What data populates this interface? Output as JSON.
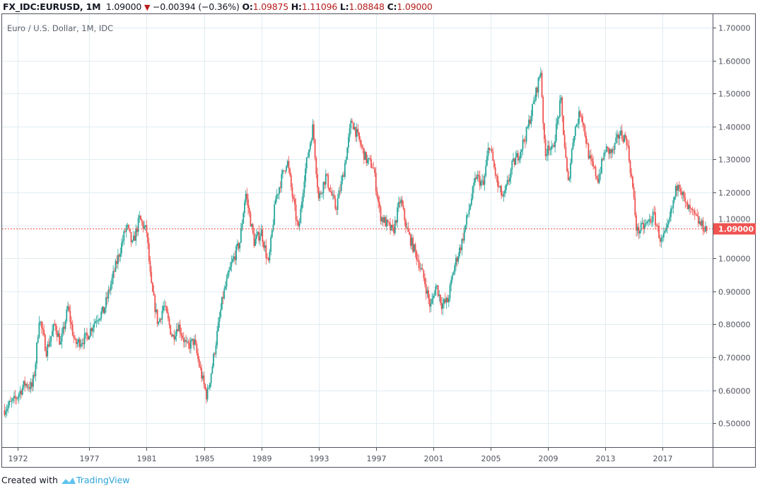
{
  "header": {
    "symbol": "FX_IDC:EURUSD, 1M",
    "last": "1.09000",
    "change": "−0.00394 (−0.36%)",
    "o_label": "O:",
    "o": "1.09875",
    "h_label": "H:",
    "h": "1.11096",
    "l_label": "L:",
    "l": "1.08848",
    "c_label": "C:",
    "c": "1.09000"
  },
  "footer": {
    "created_with": "Created with",
    "brand": "TradingView"
  },
  "colors": {
    "up": "#26a69a",
    "down": "#ef5350",
    "grid": "#e1ecf2",
    "axis": "#50535e"
  },
  "chart_data": {
    "type": "candlestick",
    "title": "Euro / U.S. Dollar, 1M, IDC",
    "interval": "1M",
    "xlabel": "",
    "ylabel": "",
    "ylim": [
      0.43,
      1.74
    ],
    "xlim": [
      1970.9,
      2020.8
    ],
    "grid": true,
    "y_ticks": [
      "1.70000",
      "1.60000",
      "1.50000",
      "1.40000",
      "1.30000",
      "1.20000",
      "1.10000",
      "1.00000",
      "0.90000",
      "0.80000",
      "0.70000",
      "0.60000",
      "0.50000"
    ],
    "x_ticks": [
      "1972",
      "1977",
      "1981",
      "1985",
      "1989",
      "1993",
      "1997",
      "2001",
      "2005",
      "2009",
      "2013",
      "2017"
    ],
    "last_price": 1.09,
    "last_price_label": "1.09000",
    "approx_close_path": [
      [
        1971.0,
        0.54
      ],
      [
        1971.8,
        0.57
      ],
      [
        1972.5,
        0.62
      ],
      [
        1973.0,
        0.61
      ],
      [
        1973.2,
        0.66
      ],
      [
        1973.5,
        0.82
      ],
      [
        1974.0,
        0.72
      ],
      [
        1974.6,
        0.8
      ],
      [
        1975.0,
        0.74
      ],
      [
        1975.5,
        0.85
      ],
      [
        1976.0,
        0.74
      ],
      [
        1976.8,
        0.76
      ],
      [
        1977.5,
        0.82
      ],
      [
        1978.0,
        0.84
      ],
      [
        1978.8,
        0.97
      ],
      [
        1979.3,
        1.05
      ],
      [
        1979.6,
        1.1
      ],
      [
        1980.0,
        1.04
      ],
      [
        1980.5,
        1.12
      ],
      [
        1981.0,
        1.08
      ],
      [
        1981.3,
        0.92
      ],
      [
        1981.8,
        0.8
      ],
      [
        1982.2,
        0.86
      ],
      [
        1982.8,
        0.76
      ],
      [
        1983.2,
        0.8
      ],
      [
        1983.8,
        0.73
      ],
      [
        1984.3,
        0.75
      ],
      [
        1984.8,
        0.65
      ],
      [
        1985.2,
        0.58
      ],
      [
        1985.6,
        0.68
      ],
      [
        1986.3,
        0.88
      ],
      [
        1986.9,
        0.98
      ],
      [
        1987.5,
        1.05
      ],
      [
        1987.9,
        1.2
      ],
      [
        1988.5,
        1.05
      ],
      [
        1989.0,
        1.08
      ],
      [
        1989.5,
        0.98
      ],
      [
        1990.0,
        1.18
      ],
      [
        1990.8,
        1.3
      ],
      [
        1991.2,
        1.18
      ],
      [
        1991.6,
        1.08
      ],
      [
        1992.0,
        1.25
      ],
      [
        1992.6,
        1.4
      ],
      [
        1993.0,
        1.18
      ],
      [
        1993.5,
        1.25
      ],
      [
        1994.2,
        1.15
      ],
      [
        1994.7,
        1.25
      ],
      [
        1995.3,
        1.42
      ],
      [
        1995.8,
        1.36
      ],
      [
        1996.3,
        1.3
      ],
      [
        1996.8,
        1.28
      ],
      [
        1997.3,
        1.13
      ],
      [
        1997.8,
        1.1
      ],
      [
        1998.2,
        1.08
      ],
      [
        1998.7,
        1.18
      ],
      [
        1999.2,
        1.08
      ],
      [
        1999.9,
        1.0
      ],
      [
        2000.4,
        0.93
      ],
      [
        2000.8,
        0.85
      ],
      [
        2001.2,
        0.92
      ],
      [
        2001.6,
        0.86
      ],
      [
        2002.0,
        0.87
      ],
      [
        2002.5,
        0.98
      ],
      [
        2003.0,
        1.05
      ],
      [
        2003.5,
        1.15
      ],
      [
        2004.0,
        1.25
      ],
      [
        2004.5,
        1.22
      ],
      [
        2004.9,
        1.35
      ],
      [
        2005.5,
        1.22
      ],
      [
        2005.9,
        1.18
      ],
      [
        2006.5,
        1.28
      ],
      [
        2007.0,
        1.32
      ],
      [
        2007.5,
        1.38
      ],
      [
        2008.0,
        1.47
      ],
      [
        2008.5,
        1.57
      ],
      [
        2008.8,
        1.3
      ],
      [
        2009.0,
        1.35
      ],
      [
        2009.3,
        1.32
      ],
      [
        2009.9,
        1.48
      ],
      [
        2010.4,
        1.22
      ],
      [
        2010.8,
        1.38
      ],
      [
        2011.3,
        1.45
      ],
      [
        2011.9,
        1.3
      ],
      [
        2012.5,
        1.24
      ],
      [
        2013.0,
        1.33
      ],
      [
        2013.5,
        1.32
      ],
      [
        2014.0,
        1.38
      ],
      [
        2014.5,
        1.36
      ],
      [
        2014.9,
        1.22
      ],
      [
        2015.2,
        1.08
      ],
      [
        2015.8,
        1.1
      ],
      [
        2016.4,
        1.13
      ],
      [
        2016.9,
        1.05
      ],
      [
        2017.3,
        1.08
      ],
      [
        2017.8,
        1.18
      ],
      [
        2018.1,
        1.24
      ],
      [
        2018.6,
        1.16
      ],
      [
        2019.0,
        1.14
      ],
      [
        2019.7,
        1.1
      ],
      [
        2020.1,
        1.09
      ]
    ]
  }
}
